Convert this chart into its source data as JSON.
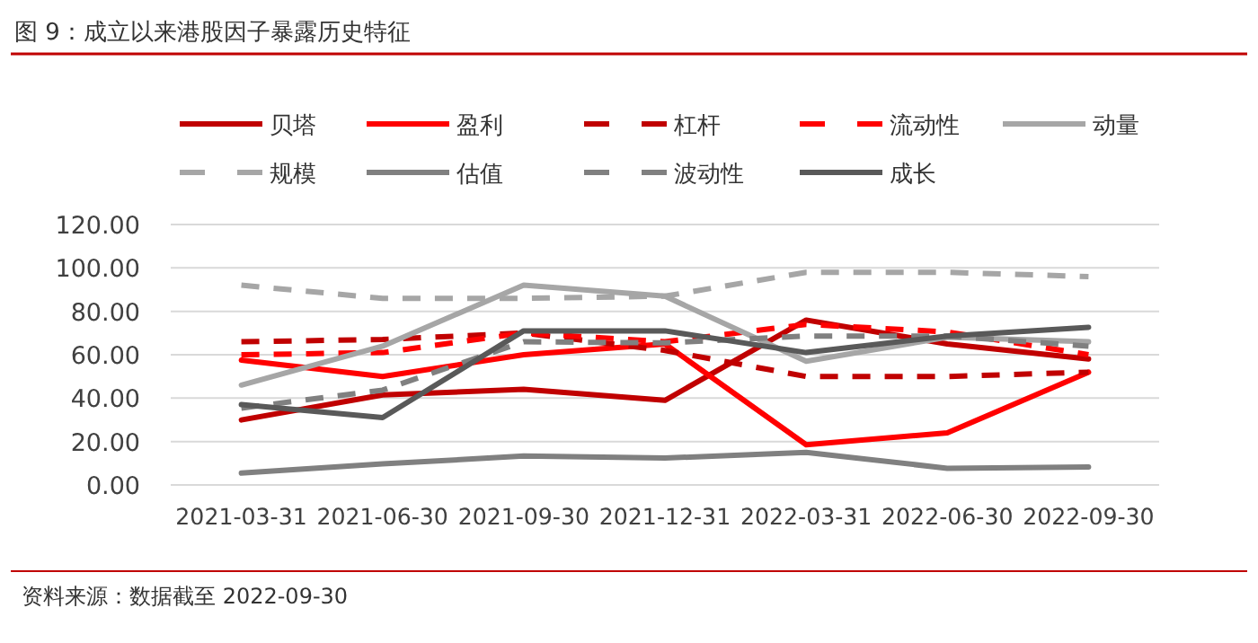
{
  "chart_data": {
    "type": "line",
    "title": "图 9：成立以来港股因子暴露历史特征",
    "annotations": [
      "资料来源：数据截至 2022-09-30"
    ],
    "categories": [
      "2021-03-31",
      "2021-06-30",
      "2021-09-30",
      "2021-12-31",
      "2022-03-31",
      "2022-06-30",
      "2022-09-30"
    ],
    "series": [
      {
        "name": "贝塔",
        "color": "#c00000",
        "line_style": "solid",
        "values": [
          30,
          41.5,
          44,
          39,
          76,
          65,
          58
        ]
      },
      {
        "name": "盈利",
        "color": "#ff0000",
        "line_style": "solid",
        "values": [
          57.5,
          50,
          60,
          65,
          18.5,
          24,
          52
        ]
      },
      {
        "name": "杠杆",
        "color": "#c00000",
        "line_style": "dashed",
        "values": [
          66,
          67,
          70,
          62,
          50,
          50,
          52
        ]
      },
      {
        "name": "流动性",
        "color": "#ff0000",
        "line_style": "dashed",
        "values": [
          60,
          61,
          70,
          66,
          74,
          70.5,
          60
        ]
      },
      {
        "name": "动量",
        "color": "#a6a6a6",
        "line_style": "solid",
        "values": [
          46,
          64,
          92,
          87,
          57,
          68,
          66
        ]
      },
      {
        "name": "规模",
        "color": "#a6a6a6",
        "line_style": "dashed",
        "values": [
          92,
          86,
          86,
          87,
          98,
          98,
          96
        ]
      },
      {
        "name": "估值",
        "color": "#808080",
        "line_style": "solid",
        "values": [
          5.5,
          9.7,
          13.3,
          12.4,
          15,
          7.7,
          8.3
        ]
      },
      {
        "name": "波动性",
        "color": "#808080",
        "line_style": "dashed",
        "values": [
          35.4,
          43.7,
          66,
          65.5,
          68.6,
          68.6,
          64
        ]
      },
      {
        "name": "成长",
        "color": "#595959",
        "line_style": "solid",
        "values": [
          37,
          31,
          71,
          71,
          61,
          68.6,
          72.7
        ]
      }
    ],
    "ylim": [
      0,
      120
    ],
    "yticks": [
      {
        "value": 0,
        "label": "0.00"
      },
      {
        "value": 20,
        "label": "20.00"
      },
      {
        "value": 40,
        "label": "40.00"
      },
      {
        "value": 60,
        "label": "60.00"
      },
      {
        "value": 80,
        "label": "80.00"
      },
      {
        "value": 100,
        "label": "100.00"
      },
      {
        "value": 120,
        "label": "120.00"
      }
    ],
    "grid": "y",
    "legend": "top"
  }
}
